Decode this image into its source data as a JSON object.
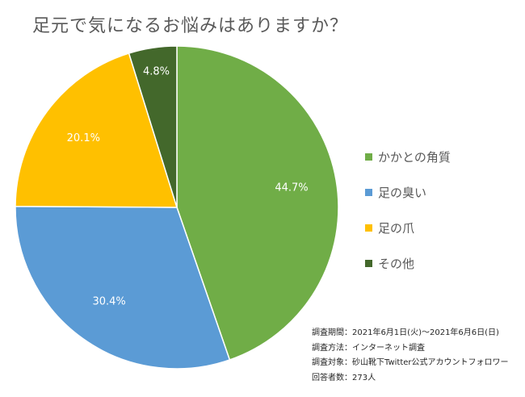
{
  "chart_data": {
    "type": "pie",
    "title": "足元で気になるお悩みはありますか？",
    "categories": [
      "かかとの角質",
      "足の臭い",
      "足の爪",
      "その他"
    ],
    "values": [
      44.7,
      30.4,
      20.1,
      4.8
    ],
    "value_labels": [
      "44.7%",
      "30.4%",
      "20.1%",
      "4.8%"
    ],
    "colors": [
      "#70AD47",
      "#5B9BD5",
      "#FFC000",
      "#43682B"
    ],
    "legend_position": "right",
    "start_angle": "12 o'clock, clockwise"
  },
  "survey_info": {
    "period": "調査期間：2021年6月1日(火)～2021年6月6日(日)",
    "method": "調査方法：インターネット調査",
    "target": "調査対象：砂山靴下Twitter公式アカウントフォロワー",
    "respondents": "回答者数：273人"
  }
}
